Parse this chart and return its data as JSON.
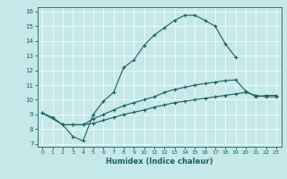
{
  "xlabel": "Humidex (Indice chaleur)",
  "xlim": [
    -0.5,
    23.5
  ],
  "ylim": [
    6.8,
    16.3
  ],
  "xticks": [
    0,
    1,
    2,
    3,
    4,
    5,
    6,
    7,
    8,
    9,
    10,
    11,
    12,
    13,
    14,
    15,
    16,
    17,
    18,
    19,
    20,
    21,
    22,
    23
  ],
  "yticks": [
    7,
    8,
    9,
    10,
    11,
    12,
    13,
    14,
    15,
    16
  ],
  "bg_color": "#c5e8e8",
  "line_color": "#1a5f5f",
  "grid_color": "#ffffff",
  "line1_x": [
    0,
    1,
    2,
    3,
    4,
    5,
    6,
    7,
    8,
    9,
    10,
    11,
    12,
    13,
    14,
    15,
    16,
    17,
    18,
    19
  ],
  "line1_y": [
    9.1,
    8.8,
    8.3,
    7.5,
    7.2,
    9.0,
    9.9,
    10.5,
    12.2,
    12.7,
    13.7,
    14.4,
    14.9,
    15.4,
    15.75,
    15.75,
    15.4,
    15.0,
    13.8,
    12.9
  ],
  "line2_x": [
    0,
    2,
    3,
    4,
    5,
    6,
    7,
    8,
    9,
    10,
    11,
    12,
    13,
    14,
    15,
    16,
    17,
    18,
    19,
    20,
    21,
    22,
    23
  ],
  "line2_y": [
    9.1,
    8.3,
    8.3,
    8.3,
    8.7,
    9.0,
    9.3,
    9.6,
    9.8,
    10.0,
    10.2,
    10.5,
    10.7,
    10.85,
    11.0,
    11.1,
    11.2,
    11.3,
    11.35,
    10.6,
    10.2,
    10.3,
    10.3
  ],
  "line3_x": [
    2,
    3,
    4,
    5,
    6,
    7,
    8,
    9,
    10,
    11,
    12,
    13,
    14,
    15,
    16,
    17,
    18,
    19,
    20,
    21,
    22,
    23
  ],
  "line3_y": [
    8.3,
    8.3,
    8.3,
    8.4,
    8.6,
    8.8,
    9.0,
    9.15,
    9.3,
    9.5,
    9.65,
    9.8,
    9.9,
    10.0,
    10.1,
    10.2,
    10.3,
    10.4,
    10.5,
    10.3,
    10.2,
    10.2
  ]
}
